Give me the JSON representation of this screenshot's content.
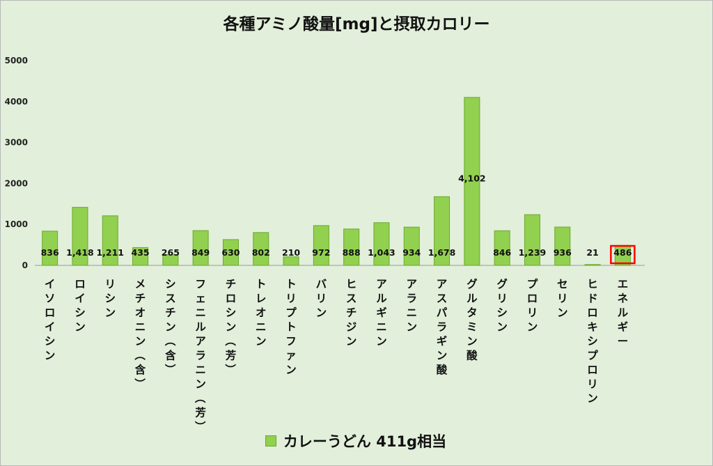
{
  "chart_data": {
    "type": "bar",
    "title": "各種アミノ酸量[mg]と摂取カロリー",
    "categories": [
      "イソロイシン",
      "ロイシン",
      "リシン",
      "メチオニン（含）",
      "シスチン（含）",
      "フェニルアラニン（芳）",
      "チロシン（芳）",
      "トレオニン",
      "トリプトファン",
      "バリン",
      "ヒスチジン",
      "アルギニン",
      "アラニン",
      "アスパラギン酸",
      "グルタミン酸",
      "グリシン",
      "プロリン",
      "セリン",
      "ヒドロキシプロリン",
      "エネルギー"
    ],
    "series": [
      {
        "name": "カレーうどん 411g相当",
        "values": [
          836,
          1418,
          1211,
          435,
          265,
          849,
          630,
          802,
          210,
          972,
          888,
          1043,
          934,
          1678,
          4102,
          846,
          1239,
          936,
          21,
          486
        ]
      }
    ],
    "data_labels": [
      "836",
      "1,418",
      "1,211",
      "435",
      "265",
      "849",
      "630",
      "802",
      "210",
      "972",
      "888",
      "1,043",
      "934",
      "1,678",
      "4,102",
      "846",
      "1,239",
      "936",
      "21",
      "486"
    ],
    "highlight": "エネルギー",
    "ylim": [
      0,
      5000
    ],
    "yticks": [
      "0",
      "1000",
      "2000",
      "3000",
      "4000",
      "5000"
    ],
    "grid": false,
    "legend": "bottom",
    "colors": {
      "bar": "#92d050",
      "bar_border": "#6aa82c",
      "highlight": "#ff0000",
      "background": "#e2efda"
    }
  }
}
